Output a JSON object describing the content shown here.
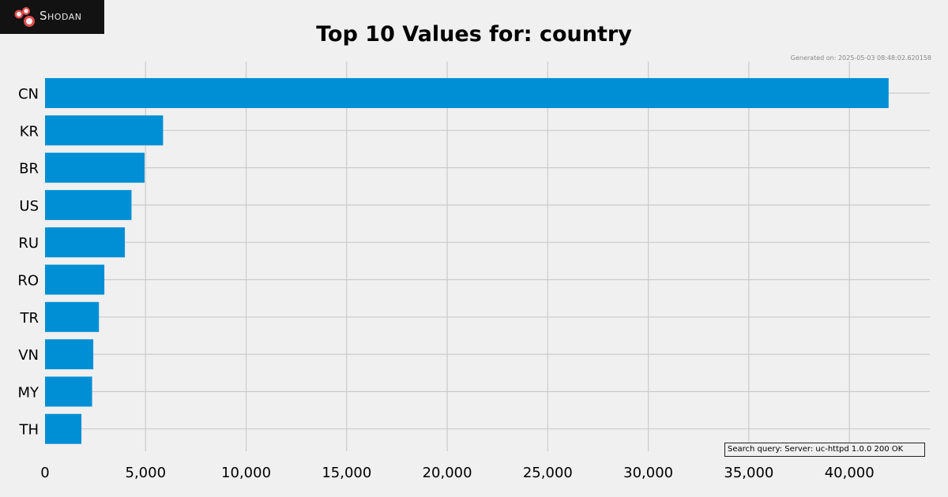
{
  "brand": {
    "name": "Shodan"
  },
  "generated": "Generated on: 2025-05-03 08:48:02.620158",
  "query": "Search query: Server: uc-httpd 1.0.0 200 OK",
  "chart_data": {
    "type": "bar",
    "orientation": "horizontal",
    "title": "Top 10 Values for: country",
    "xlabel": "",
    "ylabel": "",
    "categories": [
      "CN",
      "KR",
      "BR",
      "US",
      "RU",
      "RO",
      "TR",
      "VN",
      "MY",
      "TH"
    ],
    "values": [
      41950,
      5870,
      4950,
      4300,
      3970,
      2950,
      2680,
      2400,
      2340,
      1810
    ],
    "xlim": [
      0,
      44000
    ],
    "xticks": [
      0,
      5000,
      10000,
      15000,
      20000,
      25000,
      30000,
      35000,
      40000
    ],
    "xtick_labels": [
      "0",
      "5,000",
      "10,000",
      "15,000",
      "20,000",
      "25,000",
      "30,000",
      "35,000",
      "40,000"
    ],
    "grid": true,
    "bar_color": "#008fd5",
    "background_color": "#f0f0f0",
    "grid_color": "#cbcbcb"
  }
}
